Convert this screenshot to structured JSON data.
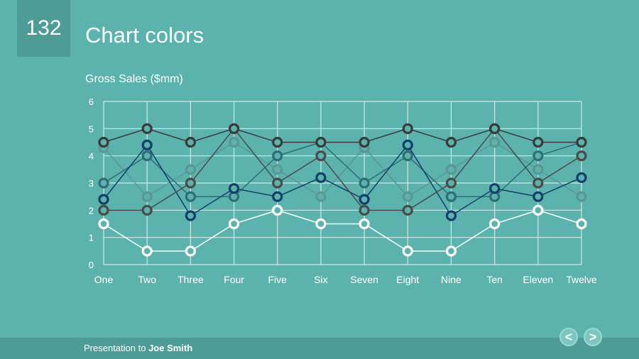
{
  "slide": {
    "number": "132",
    "title": "Chart colors",
    "footer_prefix": "Presentation to ",
    "footer_name": "Joe Smith",
    "prev_icon": "chevron-left-icon",
    "next_icon": "chevron-right-icon",
    "prev_glyph": "<",
    "next_glyph": ">"
  },
  "chart_data": {
    "type": "line",
    "title": "Gross Sales ($mm)",
    "xlabel": "",
    "ylabel": "",
    "ylim": [
      0,
      6
    ],
    "yticks": [
      "0",
      "1",
      "2",
      "3",
      "4",
      "5",
      "6"
    ],
    "grid": true,
    "legend": "none",
    "categories": [
      "One",
      "Two",
      "Three",
      "Four",
      "Five",
      "Six",
      "Seven",
      "Eight",
      "Nine",
      "Ten",
      "Eleven",
      "Twelve"
    ],
    "series": [
      {
        "color": "#ffffff",
        "values": [
          1.5,
          0.5,
          0.5,
          1.5,
          2,
          1.5,
          1.5,
          0.5,
          0.5,
          1.5,
          2,
          1.5
        ]
      },
      {
        "color": "#5a9794",
        "values": [
          4.3,
          2.5,
          3.5,
          4.5,
          3.5,
          2.5,
          4.3,
          2.5,
          3.5,
          4.5,
          3.5,
          2.5
        ]
      },
      {
        "color": "#2f6d76",
        "values": [
          3,
          4,
          2.5,
          2.5,
          4,
          4.5,
          3,
          4,
          2.5,
          2.5,
          4,
          4.5
        ]
      },
      {
        "color": "#123e6a",
        "values": [
          2.4,
          4.4,
          1.8,
          2.8,
          2.5,
          3.2,
          2.4,
          4.4,
          1.8,
          2.8,
          2.5,
          3.2
        ]
      },
      {
        "color": "#4a4a4a",
        "values": [
          2,
          2,
          3,
          5,
          3,
          4,
          2,
          2,
          3,
          5,
          3,
          4
        ]
      },
      {
        "color": "#3a3a3a",
        "values": [
          4.5,
          5,
          4.5,
          5,
          4.5,
          4.5,
          4.5,
          5,
          4.5,
          5,
          4.5,
          4.5
        ]
      }
    ]
  }
}
